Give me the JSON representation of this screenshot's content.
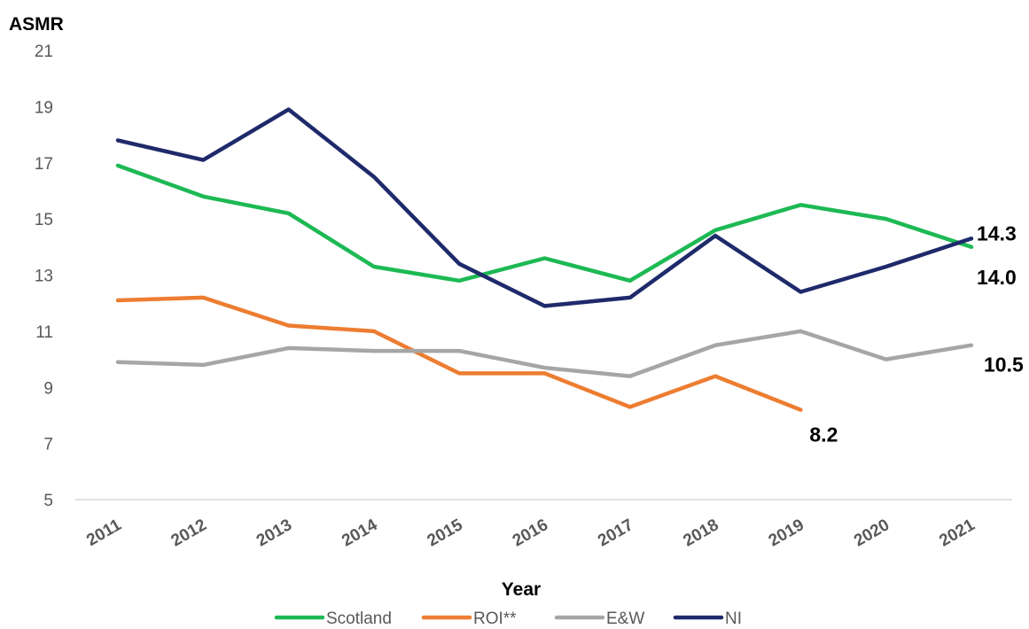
{
  "chart_data": {
    "type": "line",
    "title": "",
    "xlabel": "Year",
    "ylabel": "ASMR",
    "ylim": [
      5,
      21
    ],
    "y_ticks": [
      "5",
      "7",
      "9",
      "11",
      "13",
      "15",
      "17",
      "19",
      "21"
    ],
    "categories": [
      "2011",
      "2012",
      "2013",
      "2014",
      "2015",
      "2016",
      "2017",
      "2018",
      "2019",
      "2020",
      "2021"
    ],
    "grid": false,
    "legend_position": "bottom",
    "series": [
      {
        "name": "Scotland",
        "color": "#1DB954",
        "values": [
          16.9,
          15.8,
          15.2,
          13.3,
          12.8,
          13.6,
          12.8,
          14.6,
          15.5,
          15.0,
          14.0
        ]
      },
      {
        "name": "ROI**",
        "color": "#ED7D31",
        "values": [
          12.1,
          12.2,
          11.2,
          11.0,
          9.5,
          9.5,
          8.3,
          9.4,
          8.2,
          null,
          null
        ]
      },
      {
        "name": "E&W",
        "color": "#A6A6A6",
        "values": [
          9.9,
          9.8,
          10.4,
          10.3,
          10.3,
          9.7,
          9.4,
          10.5,
          11.0,
          10.0,
          10.5
        ]
      },
      {
        "name": "NI",
        "color": "#1F2A6B",
        "values": [
          17.8,
          17.1,
          18.9,
          16.5,
          13.4,
          11.9,
          12.2,
          14.4,
          12.4,
          13.3,
          14.3
        ]
      }
    ],
    "annotations": [
      {
        "text": "14.3",
        "series": "NI",
        "category": "2021"
      },
      {
        "text": "14.0",
        "series": "Scotland",
        "category": "2021"
      },
      {
        "text": "10.5",
        "series": "E&W",
        "category": "2021"
      },
      {
        "text": "8.2",
        "series": "ROI**",
        "category": "2019"
      }
    ]
  }
}
